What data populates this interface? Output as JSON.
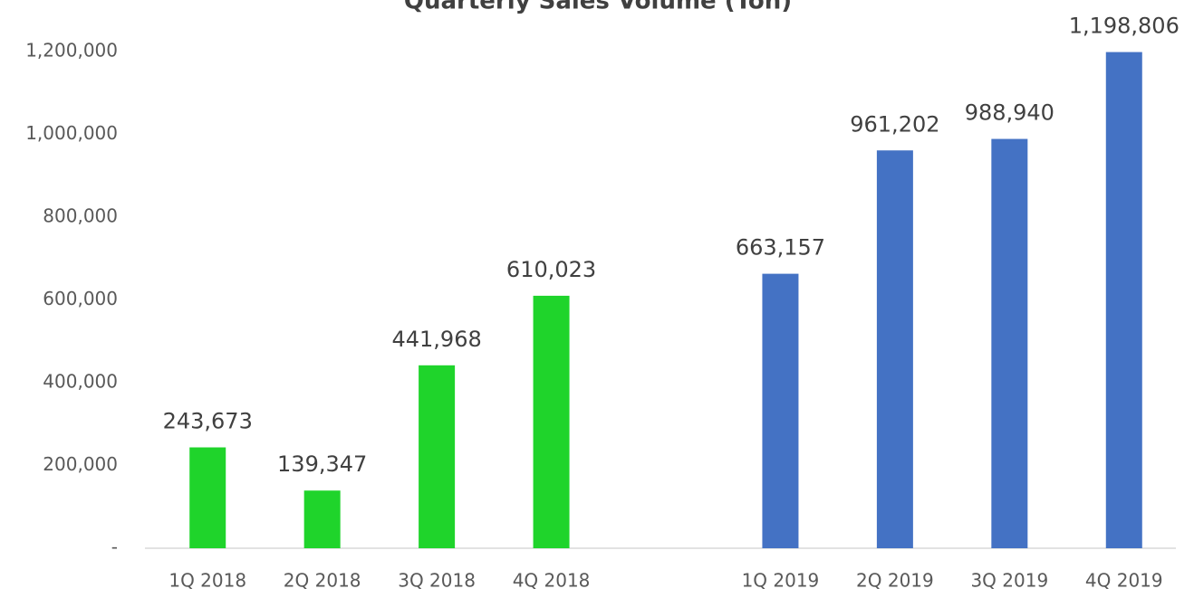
{
  "chart_data": {
    "type": "bar",
    "title": "Quarterly Sales Volume (Ton)",
    "categories": [
      "1Q 2018",
      "2Q 2018",
      "3Q 2018",
      "4Q 2018",
      null,
      "1Q 2019",
      "2Q 2019",
      "3Q 2019",
      "4Q 2019"
    ],
    "values": [
      243673,
      139347,
      441968,
      610023,
      null,
      663157,
      961202,
      988940,
      1198806
    ],
    "value_labels": [
      "243,673",
      "139,347",
      "441,968",
      "610,023",
      null,
      "663,157",
      "961,202",
      "988,940",
      "1,198,806"
    ],
    "colors": [
      "#1fd42b",
      "#1fd42b",
      "#1fd42b",
      "#1fd42b",
      null,
      "#4472c4",
      "#4472c4",
      "#4472c4",
      "#4472c4"
    ],
    "ylim": [
      0,
      1200000
    ],
    "yticks": [
      {
        "value": 0,
        "label": "-"
      },
      {
        "value": 200000,
        "label": "200,000"
      },
      {
        "value": 400000,
        "label": "400,000"
      },
      {
        "value": 600000,
        "label": "600,000"
      },
      {
        "value": 800000,
        "label": "800,000"
      },
      {
        "value": 1000000,
        "label": "1,000,000"
      },
      {
        "value": 1200000,
        "label": "1,200,000"
      }
    ],
    "grid": false
  }
}
